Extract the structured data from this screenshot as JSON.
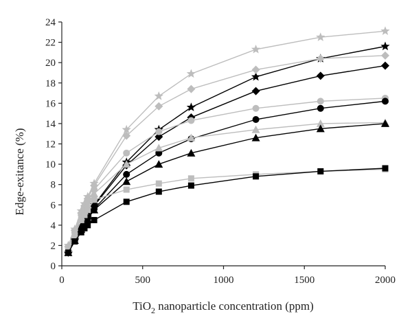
{
  "chart_data": {
    "type": "line",
    "xlabel": {
      "prefix": "TiO",
      "sub": "2",
      "suffix": " nanoparticle concentration (ppm)"
    },
    "ylabel": "Edge-exitance (%)",
    "xlim": [
      0,
      2000
    ],
    "ylim": [
      0,
      24
    ],
    "xticks": [
      0,
      500,
      1000,
      1500,
      2000
    ],
    "yticks": [
      0,
      2,
      4,
      6,
      8,
      10,
      12,
      14,
      16,
      18,
      20,
      22,
      24
    ],
    "grid": false,
    "legend": "none",
    "x": [
      40,
      80,
      120,
      140,
      160,
      200,
      400,
      600,
      800,
      1200,
      1600,
      2000
    ],
    "series": [
      {
        "marker": "star",
        "color": "#bdbdbd",
        "values": [
          2.0,
          3.6,
          5.4,
          6.1,
          6.8,
          8.1,
          13.4,
          16.7,
          18.9,
          21.3,
          22.5,
          23.1
        ]
      },
      {
        "marker": "star",
        "color": "#000000",
        "values": [
          1.3,
          2.6,
          3.9,
          4.4,
          5.0,
          6.0,
          10.2,
          13.4,
          15.6,
          18.6,
          20.4,
          21.6
        ]
      },
      {
        "marker": "diamond",
        "color": "#bdbdbd",
        "values": [
          1.9,
          3.5,
          5.2,
          5.9,
          6.6,
          7.9,
          12.8,
          15.7,
          17.4,
          19.3,
          20.4,
          20.7
        ]
      },
      {
        "marker": "diamond",
        "color": "#000000",
        "values": [
          1.3,
          2.6,
          3.8,
          4.3,
          4.9,
          5.9,
          9.9,
          12.7,
          14.6,
          17.2,
          18.7,
          19.7
        ]
      },
      {
        "marker": "circle",
        "color": "#bdbdbd",
        "values": [
          1.8,
          3.3,
          5.0,
          5.6,
          6.3,
          7.5,
          11.1,
          13.2,
          14.3,
          15.5,
          16.2,
          16.5
        ]
      },
      {
        "marker": "circle",
        "color": "#000000",
        "values": [
          1.3,
          2.5,
          3.7,
          4.2,
          4.7,
          5.6,
          9.0,
          11.1,
          12.5,
          14.4,
          15.5,
          16.2
        ]
      },
      {
        "marker": "triangle",
        "color": "#bdbdbd",
        "values": [
          1.7,
          3.2,
          4.8,
          5.4,
          6.0,
          7.1,
          10.0,
          11.6,
          12.6,
          13.4,
          14.0,
          14.1
        ]
      },
      {
        "marker": "triangle",
        "color": "#000000",
        "values": [
          1.3,
          2.5,
          3.6,
          4.1,
          4.6,
          5.5,
          8.3,
          10.0,
          11.1,
          12.6,
          13.5,
          14.0
        ]
      },
      {
        "marker": "square",
        "color": "#bdbdbd",
        "values": [
          1.6,
          3.0,
          4.5,
          5.0,
          5.5,
          6.5,
          7.5,
          8.1,
          8.6,
          9.0,
          9.3,
          9.5
        ]
      },
      {
        "marker": "square",
        "color": "#000000",
        "values": [
          1.3,
          2.4,
          3.3,
          3.7,
          4.0,
          4.5,
          6.3,
          7.3,
          7.9,
          8.8,
          9.3,
          9.6
        ]
      }
    ]
  }
}
